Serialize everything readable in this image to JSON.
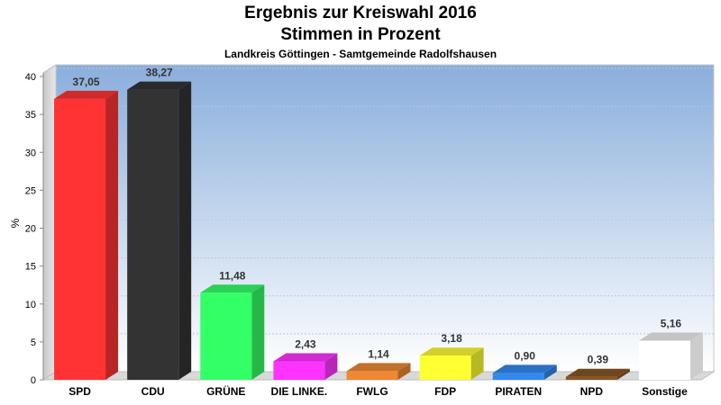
{
  "chart_data": {
    "type": "bar",
    "title": "Ergebnis zur Kreiswahl 2016",
    "subtitle_line": "Stimmen in Prozent",
    "subtitle": "Landkreis Göttingen - Samtgemeinde Radolfshausen",
    "ylabel": "%",
    "xlabel": "",
    "ylim": [
      0,
      40
    ],
    "yticks": [
      0,
      5,
      10,
      15,
      20,
      25,
      30,
      35,
      40
    ],
    "grid": true,
    "categories": [
      "SPD",
      "CDU",
      "GRÜNE",
      "DIE LINKE.",
      "FWLG",
      "FDP",
      "PIRATEN",
      "NPD",
      "Sonstige"
    ],
    "values": [
      37.05,
      38.27,
      11.48,
      2.43,
      1.14,
      3.18,
      0.9,
      0.39,
      5.16
    ],
    "value_labels": [
      "37,05",
      "38,27",
      "11,48",
      "2,43",
      "1,14",
      "3,18",
      "0,90",
      "0,39",
      "5,16"
    ],
    "colors": [
      "#ff3333",
      "#333333",
      "#33ff66",
      "#ff33ff",
      "#ee8833",
      "#ffff33",
      "#3388ee",
      "#885522",
      "#ffffff"
    ]
  }
}
